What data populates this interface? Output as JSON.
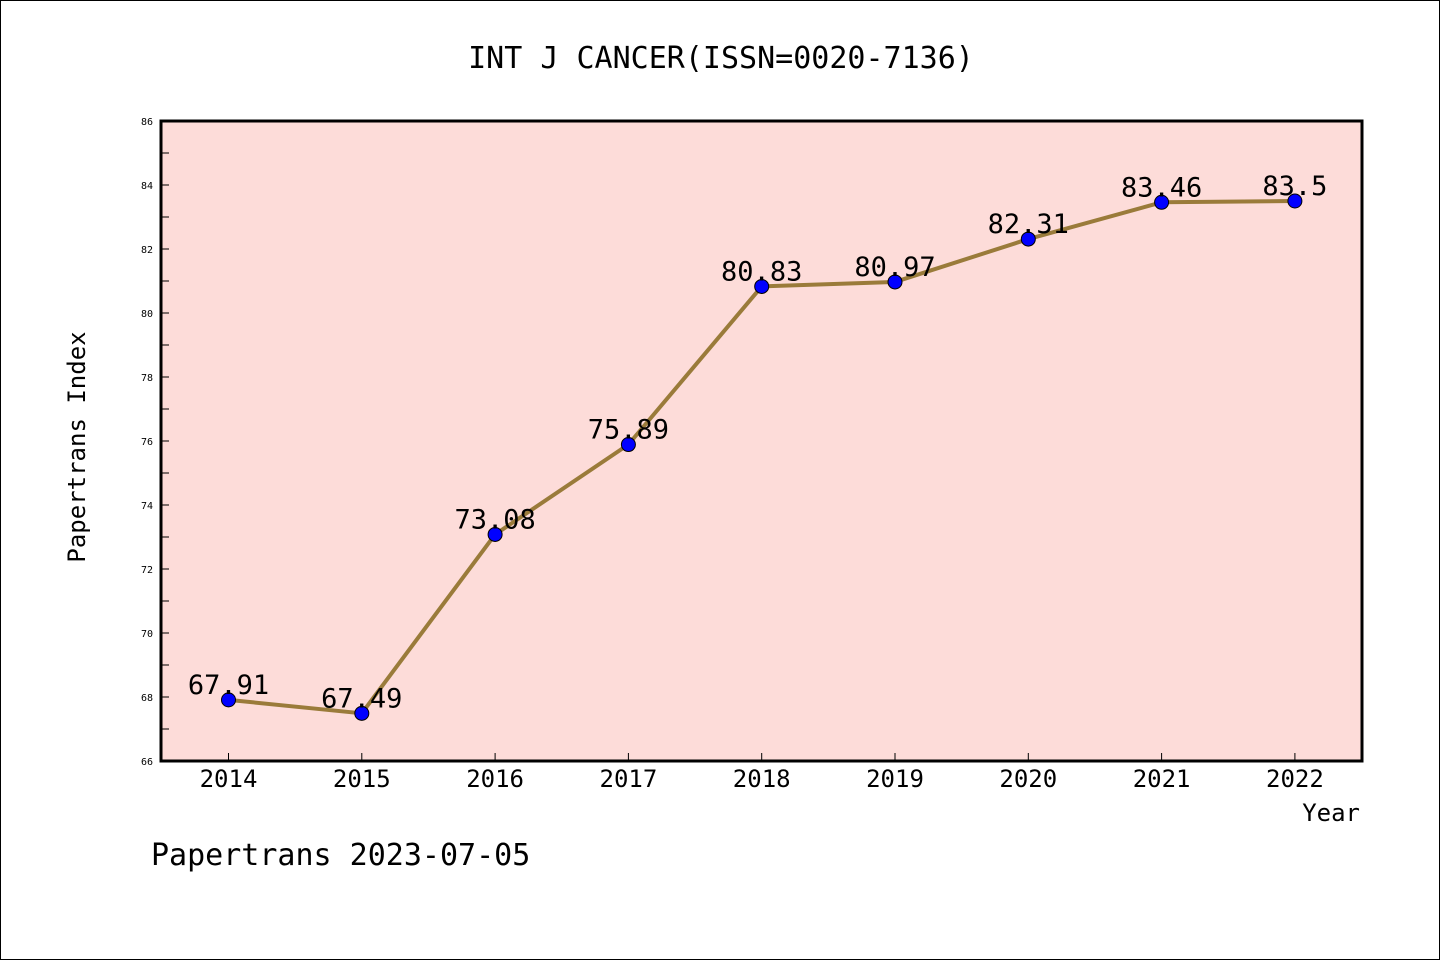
{
  "chart_data": {
    "type": "line",
    "title": "INT J CANCER(ISSN=0020-7136)",
    "xlabel": "Year",
    "ylabel": "Papertrans Index",
    "categories": [
      "2014",
      "2015",
      "2016",
      "2017",
      "2018",
      "2019",
      "2020",
      "2021",
      "2022"
    ],
    "series": [
      {
        "values": [
          67.91,
          67.49,
          73.08,
          75.89,
          80.83,
          80.97,
          82.31,
          83.46,
          83.5
        ],
        "labels": [
          "67.91",
          "67.49",
          "73.08",
          "75.89",
          "80.83",
          "80.97",
          "82.31",
          "83.46",
          "83.5"
        ]
      }
    ],
    "ylim": [
      66,
      86
    ],
    "yticks": [
      "66",
      "68",
      "70",
      "72",
      "74",
      "76",
      "78",
      "80",
      "82",
      "84",
      "86"
    ],
    "grid": false,
    "footnote": "Papertrans 2023-07-05",
    "colors": {
      "plot_background": "#fddcd9",
      "line": "#9a7b3a",
      "marker": "#0000ff",
      "axes": "#000000"
    }
  }
}
